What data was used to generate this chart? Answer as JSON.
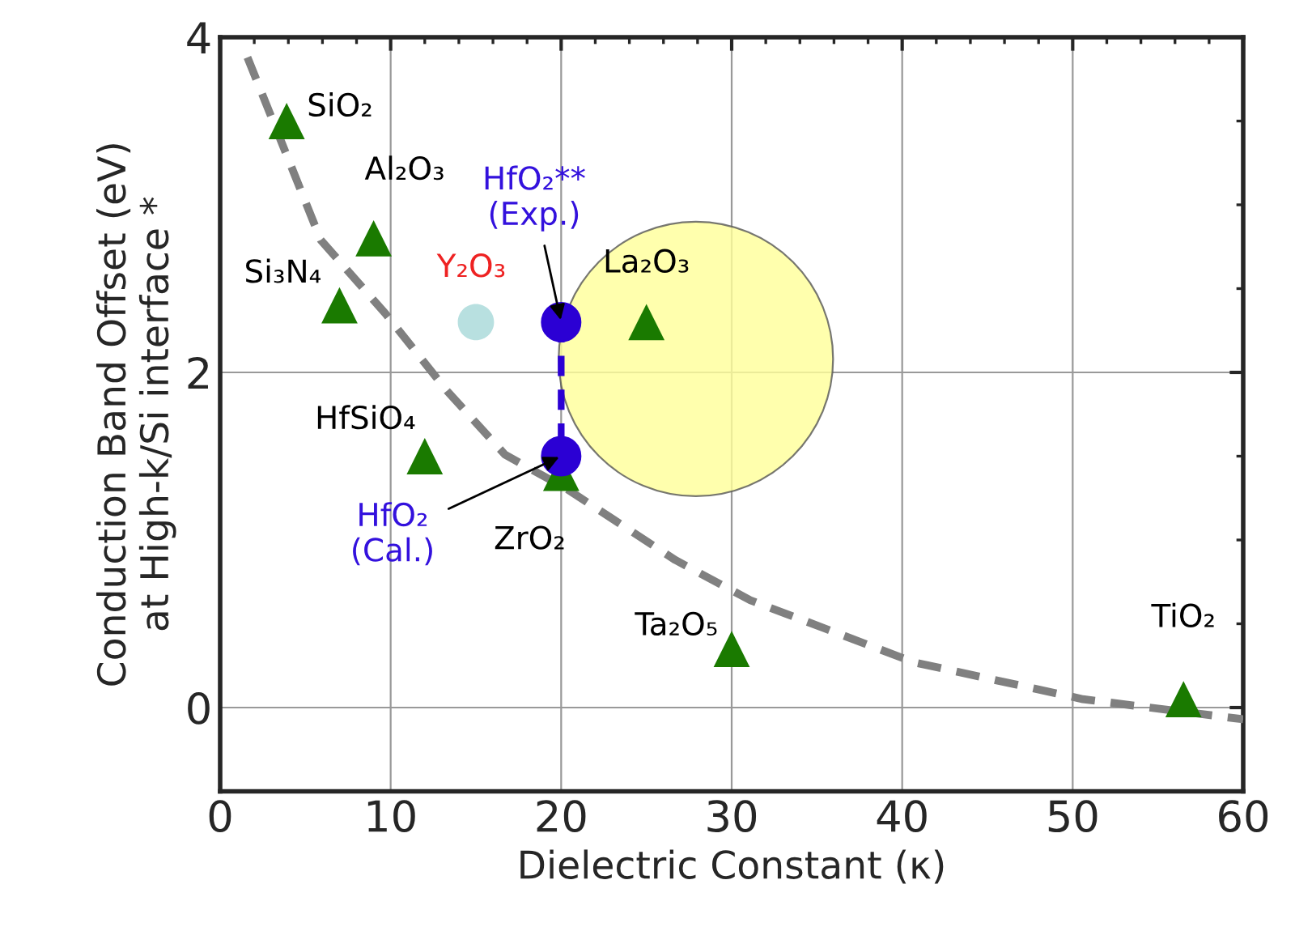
{
  "chart_data": {
    "type": "scatter",
    "xlabel": "Dielectric Constant (κ)",
    "ylabel": "Conduction Band Offset (eV)\nat High-k/Si interface *",
    "xlim": [
      0,
      60
    ],
    "xticks": [
      0,
      10,
      20,
      30,
      40,
      50,
      60
    ],
    "ylim": [
      -0.5,
      4
    ],
    "yticks": [
      0,
      2,
      4
    ],
    "grid": true,
    "series": [
      {
        "type": "line",
        "color": "#808080",
        "line_style": "dashed",
        "marker": "none",
        "x": [
          1.6,
          5.9,
          9.7,
          13.3,
          16.7,
          20.4,
          26.7,
          31.1,
          40.7,
          50.6,
          60
        ],
        "values": [
          3.88,
          2.79,
          2.35,
          1.89,
          1.51,
          1.3,
          0.88,
          0.64,
          0.27,
          0.05,
          -0.07
        ]
      },
      {
        "type": "bubble",
        "color": "#ffff99",
        "x": [
          27.9
        ],
        "values": [
          2.08
        ],
        "sizes": [
          1
        ]
      },
      {
        "color": "#1a7a00",
        "marker": "triangle",
        "x": [
          3.9,
          9,
          7,
          12,
          20,
          25,
          30,
          56.5
        ],
        "values": [
          3.5,
          2.8,
          2.4,
          1.5,
          1.4,
          2.3,
          0.35,
          0.05
        ]
      },
      {
        "color": "#b8e0e0",
        "marker": "circle",
        "x": [
          15
        ],
        "values": [
          2.3
        ]
      },
      {
        "type": "line",
        "color": "#2b00d4",
        "line_style": "dashed",
        "marker": "circle",
        "x": [
          20,
          20
        ],
        "values": [
          2.3,
          1.5
        ]
      }
    ],
    "annotations": [
      {
        "text": "SiO₂",
        "x": 3.9,
        "y": 3.5
      },
      {
        "text": "Al₂O₃",
        "x": 9,
        "y": 2.8
      },
      {
        "text": "Si₃N₄",
        "x": 7,
        "y": 2.4
      },
      {
        "text": "HfSiO₄",
        "x": 12,
        "y": 1.5
      },
      {
        "text": "ZrO₂",
        "x": 20,
        "y": 1.4
      },
      {
        "text": "La₂O₃",
        "x": 25,
        "y": 2.3
      },
      {
        "text": "Ta₂O₅",
        "x": 30,
        "y": 0.35
      },
      {
        "text": "TiO₂",
        "x": 56.5,
        "y": 0.05
      },
      {
        "text": "Y₂O₃",
        "x": 15,
        "y": 2.3
      },
      {
        "text": "HfO₂**\n(Exp.)",
        "x": 20,
        "y": 2.3
      },
      {
        "text": "HfO₂\n(Cal.)",
        "x": 20,
        "y": 1.5
      }
    ]
  }
}
